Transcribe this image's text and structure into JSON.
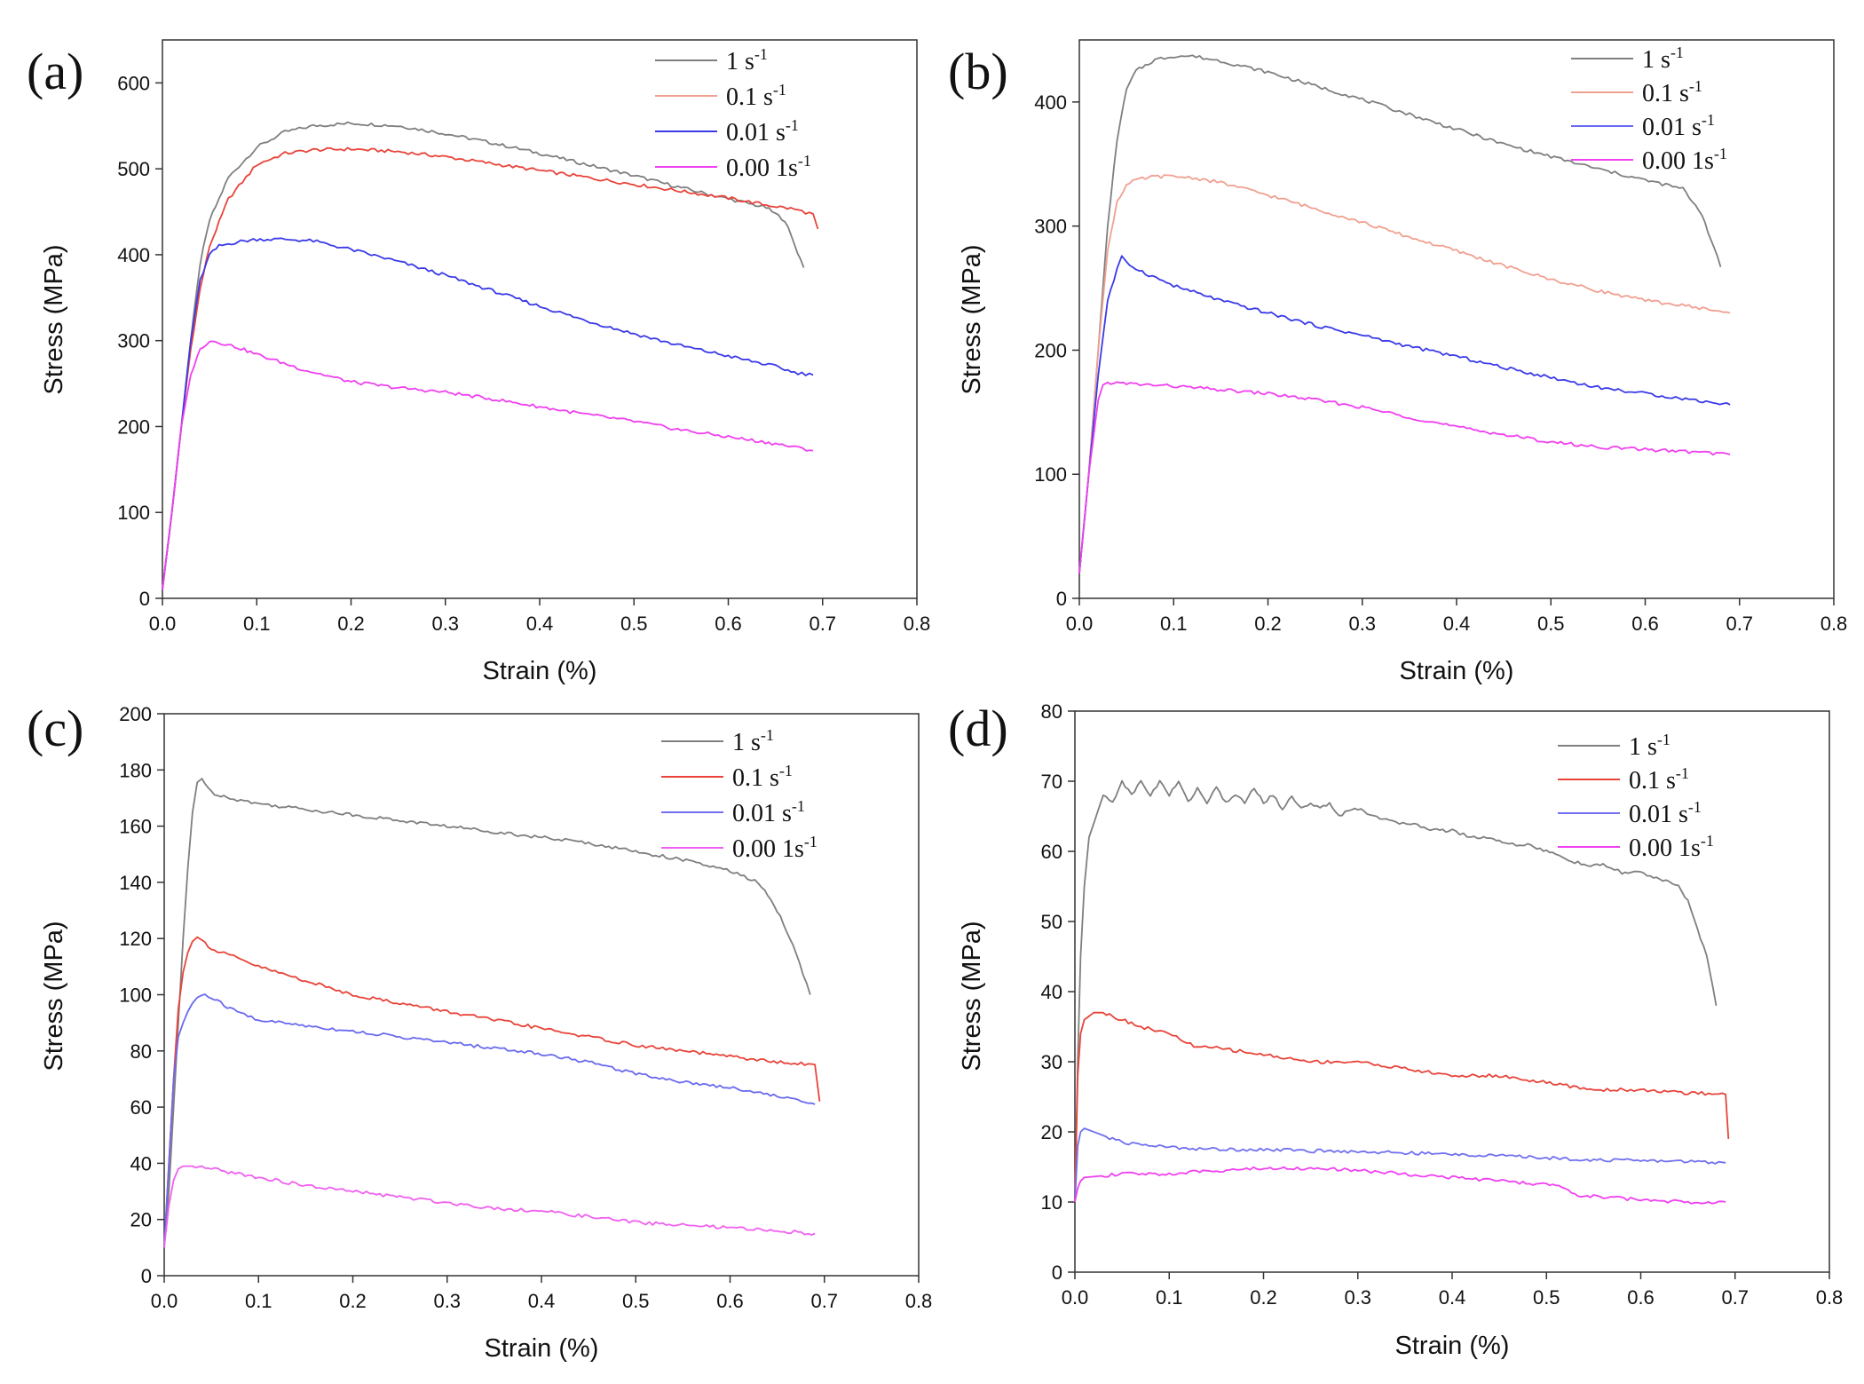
{
  "figure": {
    "legend_entries": [
      {
        "name": "1 s",
        "sup": "-1"
      },
      {
        "name": "0.1 s",
        "sup": "-1"
      },
      {
        "name": "0.01 s",
        "sup": "-1"
      },
      {
        "name": "0.00 1s",
        "sup": "-1"
      }
    ]
  },
  "chart_data": [
    {
      "panel": "(a)",
      "type": "line",
      "xlabel": "Strain (%)",
      "ylabel": "Stress (MPa)",
      "xlim": [
        0,
        0.8
      ],
      "ylim": [
        0,
        650
      ],
      "xticks": [
        0.0,
        0.1,
        0.2,
        0.3,
        0.4,
        0.5,
        0.6,
        0.7,
        0.8
      ],
      "yticks": [
        0,
        100,
        200,
        300,
        400,
        500,
        600
      ],
      "series": [
        {
          "name": "1 s-1",
          "color": "#7f7f7f",
          "x": [
            0,
            0.01,
            0.02,
            0.03,
            0.04,
            0.05,
            0.07,
            0.1,
            0.13,
            0.16,
            0.2,
            0.25,
            0.3,
            0.35,
            0.4,
            0.45,
            0.5,
            0.55,
            0.6,
            0.64,
            0.66,
            0.68
          ],
          "y": [
            10,
            100,
            200,
            300,
            390,
            440,
            490,
            525,
            543,
            550,
            553,
            550,
            541,
            530,
            518,
            505,
            492,
            478,
            465,
            455,
            440,
            385
          ]
        },
        {
          "name": "0.1 s-1",
          "color": "#e8443a",
          "x": [
            0,
            0.01,
            0.02,
            0.03,
            0.04,
            0.05,
            0.07,
            0.1,
            0.13,
            0.16,
            0.2,
            0.25,
            0.3,
            0.35,
            0.4,
            0.45,
            0.5,
            0.55,
            0.6,
            0.64,
            0.67,
            0.69,
            0.695
          ],
          "y": [
            10,
            100,
            200,
            290,
            360,
            410,
            465,
            505,
            518,
            522,
            523,
            520,
            514,
            506,
            498,
            490,
            482,
            474,
            466,
            458,
            453,
            447,
            430
          ]
        },
        {
          "name": "0.01 s-1",
          "color": "#3a3ae8",
          "x": [
            0,
            0.01,
            0.02,
            0.03,
            0.04,
            0.05,
            0.06,
            0.08,
            0.1,
            0.13,
            0.16,
            0.2,
            0.25,
            0.3,
            0.35,
            0.4,
            0.45,
            0.5,
            0.55,
            0.6,
            0.65,
            0.67,
            0.69
          ],
          "y": [
            10,
            100,
            200,
            300,
            370,
            400,
            410,
            415,
            418,
            418,
            416,
            406,
            392,
            376,
            358,
            340,
            323,
            308,
            294,
            282,
            270,
            263,
            260
          ]
        },
        {
          "name": "0.00 1s-1",
          "color": "#f040f0",
          "x": [
            0,
            0.01,
            0.02,
            0.03,
            0.04,
            0.05,
            0.06,
            0.08,
            0.1,
            0.15,
            0.2,
            0.25,
            0.3,
            0.35,
            0.4,
            0.45,
            0.5,
            0.55,
            0.6,
            0.65,
            0.69
          ],
          "y": [
            10,
            100,
            200,
            260,
            290,
            300,
            298,
            292,
            284,
            266,
            252,
            245,
            240,
            232,
            223,
            214,
            206,
            196,
            188,
            180,
            172
          ]
        }
      ]
    },
    {
      "panel": "(b)",
      "type": "line",
      "xlabel": "Strain (%)",
      "ylabel": "Stress (MPa)",
      "xlim": [
        0,
        0.8
      ],
      "ylim": [
        0,
        450
      ],
      "xticks": [
        0.0,
        0.1,
        0.2,
        0.3,
        0.4,
        0.5,
        0.6,
        0.7,
        0.8
      ],
      "yticks": [
        0,
        100,
        200,
        300,
        400
      ],
      "series": [
        {
          "name": "1 s-1",
          "color": "#7f7f7f",
          "x": [
            0,
            0.01,
            0.02,
            0.03,
            0.04,
            0.05,
            0.06,
            0.08,
            0.1,
            0.12,
            0.15,
            0.2,
            0.25,
            0.3,
            0.35,
            0.4,
            0.45,
            0.5,
            0.55,
            0.6,
            0.64,
            0.66,
            0.68
          ],
          "y": [
            20,
            100,
            200,
            300,
            370,
            410,
            425,
            434,
            437,
            437,
            433,
            424,
            413,
            402,
            390,
            378,
            366,
            356,
            346,
            337,
            330,
            310,
            267
          ]
        },
        {
          "name": "0.1 s-1",
          "color": "#f0a090",
          "x": [
            0,
            0.01,
            0.02,
            0.03,
            0.04,
            0.05,
            0.06,
            0.08,
            0.1,
            0.12,
            0.15,
            0.2,
            0.25,
            0.3,
            0.35,
            0.4,
            0.45,
            0.5,
            0.55,
            0.6,
            0.65,
            0.69
          ],
          "y": [
            20,
            100,
            200,
            280,
            320,
            333,
            337,
            340,
            340,
            339,
            335,
            325,
            314,
            303,
            291,
            280,
            268,
            257,
            248,
            240,
            235,
            230
          ]
        },
        {
          "name": "0.01 s-1",
          "color": "#3a3ae8",
          "x": [
            0,
            0.01,
            0.02,
            0.03,
            0.04,
            0.045,
            0.05,
            0.07,
            0.1,
            0.15,
            0.2,
            0.25,
            0.3,
            0.35,
            0.4,
            0.45,
            0.5,
            0.55,
            0.6,
            0.65,
            0.69
          ],
          "y": [
            20,
            100,
            180,
            240,
            265,
            275,
            270,
            262,
            252,
            240,
            230,
            220,
            212,
            203,
            195,
            186,
            178,
            170,
            165,
            160,
            156
          ]
        },
        {
          "name": "0.00 1s-1",
          "color": "#f040f0",
          "x": [
            0,
            0.01,
            0.02,
            0.025,
            0.03,
            0.05,
            0.1,
            0.15,
            0.2,
            0.25,
            0.3,
            0.35,
            0.4,
            0.45,
            0.5,
            0.55,
            0.6,
            0.65,
            0.69
          ],
          "y": [
            20,
            100,
            160,
            172,
            174,
            173,
            171,
            168,
            165,
            160,
            154,
            146,
            138,
            132,
            126,
            122,
            120,
            118,
            116
          ]
        }
      ]
    },
    {
      "panel": "(c)",
      "type": "line",
      "xlabel": "Strain (%)",
      "ylabel": "Stress (MPa)",
      "xlim": [
        0,
        0.8
      ],
      "ylim": [
        0,
        200
      ],
      "xticks": [
        0.0,
        0.1,
        0.2,
        0.3,
        0.4,
        0.5,
        0.6,
        0.7,
        0.8
      ],
      "yticks": [
        0,
        20,
        40,
        60,
        80,
        100,
        120,
        140,
        160,
        180,
        200
      ],
      "series": [
        {
          "name": "1 s-1",
          "color": "#7f7f7f",
          "x": [
            0,
            0.005,
            0.01,
            0.015,
            0.02,
            0.025,
            0.03,
            0.035,
            0.04,
            0.05,
            0.07,
            0.1,
            0.15,
            0.2,
            0.25,
            0.3,
            0.35,
            0.4,
            0.45,
            0.5,
            0.55,
            0.6,
            0.63,
            0.65,
            0.67,
            0.685
          ],
          "y": [
            10,
            30,
            60,
            90,
            120,
            145,
            165,
            176,
            177,
            172,
            170,
            168,
            166,
            164,
            162,
            160,
            158,
            156,
            154,
            151,
            148,
            144,
            140,
            130,
            115,
            100
          ]
        },
        {
          "name": "0.1 s-1",
          "color": "#e8443a",
          "x": [
            0,
            0.005,
            0.01,
            0.015,
            0.02,
            0.025,
            0.03,
            0.035,
            0.04,
            0.05,
            0.07,
            0.1,
            0.15,
            0.2,
            0.25,
            0.3,
            0.35,
            0.4,
            0.45,
            0.5,
            0.55,
            0.6,
            0.65,
            0.69,
            0.695
          ],
          "y": [
            10,
            40,
            70,
            95,
            108,
            115,
            119,
            121,
            120,
            116,
            114,
            110,
            105,
            100,
            97,
            94,
            91,
            88,
            85,
            82,
            80,
            78,
            76,
            75,
            62
          ]
        },
        {
          "name": "0.01 s-1",
          "color": "#6a6af0",
          "x": [
            0,
            0.005,
            0.01,
            0.015,
            0.02,
            0.025,
            0.03,
            0.035,
            0.04,
            0.05,
            0.07,
            0.1,
            0.15,
            0.2,
            0.25,
            0.3,
            0.35,
            0.4,
            0.45,
            0.5,
            0.55,
            0.6,
            0.65,
            0.69
          ],
          "y": [
            10,
            40,
            70,
            85,
            90,
            94,
            97,
            99,
            100,
            99,
            95,
            91,
            89,
            87,
            85,
            83,
            81,
            79,
            76,
            72,
            69,
            67,
            64,
            61
          ]
        },
        {
          "name": "0.00 1s-1",
          "color": "#f060f0",
          "x": [
            0,
            0.005,
            0.01,
            0.015,
            0.02,
            0.03,
            0.05,
            0.1,
            0.15,
            0.2,
            0.25,
            0.3,
            0.35,
            0.4,
            0.45,
            0.5,
            0.55,
            0.6,
            0.65,
            0.69
          ],
          "y": [
            10,
            25,
            34,
            38,
            39,
            39,
            38,
            35,
            32,
            30,
            28,
            26,
            24,
            23,
            21,
            19,
            18,
            17,
            16,
            15
          ]
        }
      ]
    },
    {
      "panel": "(d)",
      "type": "line",
      "xlabel": "Strain (%)",
      "ylabel": "Stress (MPa)",
      "xlim": [
        0,
        0.8
      ],
      "ylim": [
        0,
        80
      ],
      "xticks": [
        0.0,
        0.1,
        0.2,
        0.3,
        0.4,
        0.5,
        0.6,
        0.7,
        0.8
      ],
      "yticks": [
        0,
        10,
        20,
        30,
        40,
        50,
        60,
        70,
        80
      ],
      "series": [
        {
          "name": "1 s-1",
          "color": "#7f7f7f",
          "x": [
            0,
            0.003,
            0.006,
            0.01,
            0.015,
            0.02,
            0.03,
            0.04,
            0.05,
            0.06,
            0.07,
            0.08,
            0.09,
            0.1,
            0.11,
            0.12,
            0.13,
            0.14,
            0.15,
            0.16,
            0.17,
            0.18,
            0.19,
            0.2,
            0.21,
            0.22,
            0.23,
            0.24,
            0.25,
            0.26,
            0.27,
            0.28,
            0.29,
            0.3,
            0.32,
            0.34,
            0.36,
            0.38,
            0.4,
            0.42,
            0.44,
            0.46,
            0.48,
            0.5,
            0.52,
            0.54,
            0.56,
            0.58,
            0.6,
            0.62,
            0.64,
            0.65,
            0.66,
            0.67,
            0.68
          ],
          "y": [
            10,
            30,
            45,
            55,
            62,
            64,
            68,
            67,
            70,
            68,
            70,
            68,
            70,
            68,
            70,
            67,
            69,
            67,
            69,
            67,
            68,
            67,
            69,
            67,
            68,
            66,
            68,
            66,
            67,
            66,
            67,
            65,
            66,
            66,
            65,
            64,
            64,
            63,
            63,
            62,
            62,
            61,
            61,
            60,
            59,
            58,
            58,
            57,
            57,
            56,
            55,
            53,
            49,
            45,
            38
          ]
        },
        {
          "name": "0.1 s-1",
          "color": "#e8443a",
          "x": [
            0,
            0.003,
            0.006,
            0.01,
            0.02,
            0.03,
            0.05,
            0.07,
            0.1,
            0.13,
            0.15,
            0.2,
            0.25,
            0.3,
            0.35,
            0.4,
            0.45,
            0.5,
            0.55,
            0.6,
            0.65,
            0.69,
            0.693
          ],
          "y": [
            10,
            28,
            34,
            36,
            37,
            37,
            36,
            35,
            34,
            32,
            32,
            31,
            30,
            30,
            29,
            28,
            28,
            27,
            26,
            26,
            25.5,
            25.5,
            19
          ]
        },
        {
          "name": "0.01 s-1",
          "color": "#7070f0",
          "x": [
            0,
            0.003,
            0.006,
            0.01,
            0.03,
            0.05,
            0.1,
            0.15,
            0.2,
            0.25,
            0.3,
            0.35,
            0.4,
            0.45,
            0.5,
            0.55,
            0.6,
            0.65,
            0.69
          ],
          "y": [
            10,
            18,
            20,
            20.5,
            19.5,
            18.5,
            17.8,
            17.5,
            17.5,
            17.3,
            17.2,
            17,
            16.8,
            16.6,
            16.3,
            16,
            15.9,
            15.8,
            15.6
          ]
        },
        {
          "name": "0.00 1s-1",
          "color": "#f040f0",
          "x": [
            0,
            0.003,
            0.006,
            0.01,
            0.05,
            0.1,
            0.15,
            0.2,
            0.25,
            0.3,
            0.35,
            0.4,
            0.45,
            0.5,
            0.52,
            0.53,
            0.55,
            0.6,
            0.65,
            0.69
          ],
          "y": [
            10,
            12,
            13,
            13.5,
            14,
            14,
            14.5,
            14.8,
            14.8,
            14.5,
            14,
            13.5,
            13,
            12.5,
            12,
            11,
            10.8,
            10.3,
            10,
            10
          ]
        }
      ]
    }
  ]
}
